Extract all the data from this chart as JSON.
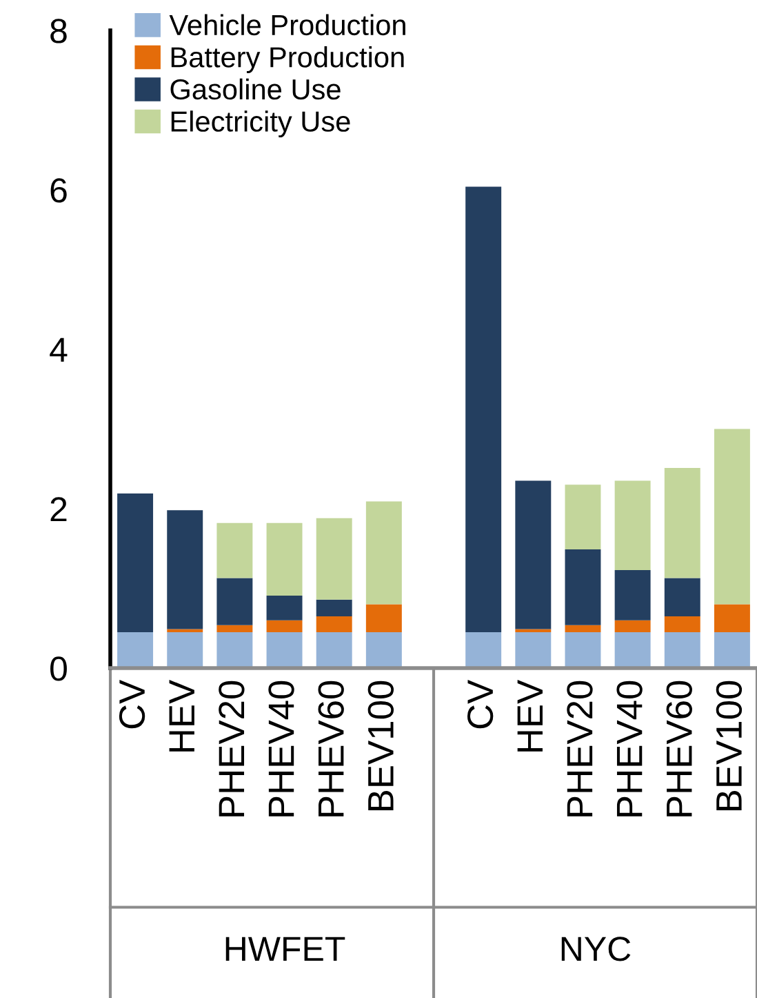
{
  "chart_data": {
    "type": "bar",
    "stacked": true,
    "categories": [
      "CV",
      "HEV",
      "PHEV20",
      "PHEV40",
      "PHEV60",
      "BEV100",
      null,
      "CV",
      "HEV",
      "PHEV20",
      "PHEV40",
      "PHEV60",
      "BEV100"
    ],
    "series": [
      {
        "name": "Vehicle Production",
        "color": "#95b3d7",
        "values": [
          0.45,
          0.45,
          0.45,
          0.45,
          0.45,
          0.45,
          null,
          0.45,
          0.45,
          0.45,
          0.45,
          0.45,
          0.45
        ]
      },
      {
        "name": "Battery Production",
        "color": "#e46c0a",
        "values": [
          0,
          0.04,
          0.09,
          0.15,
          0.2,
          0.35,
          null,
          0,
          0.04,
          0.09,
          0.15,
          0.2,
          0.35
        ]
      },
      {
        "name": "Gasoline Use",
        "color": "#243f60",
        "values": [
          1.74,
          1.49,
          0.59,
          0.31,
          0.21,
          0,
          null,
          5.59,
          1.86,
          0.95,
          0.63,
          0.48,
          0
        ]
      },
      {
        "name": "Electricity Use",
        "color": "#c3d69b",
        "values": [
          0,
          0,
          0.69,
          0.91,
          1.02,
          1.29,
          null,
          0,
          0,
          0.81,
          1.12,
          1.38,
          2.2
        ]
      }
    ],
    "annotations": [
      "HWFET",
      "NYC"
    ],
    "ylim": [
      0,
      8
    ],
    "yticks": [
      0,
      2,
      4,
      6,
      8
    ],
    "legend": "top left",
    "grid": false
  }
}
